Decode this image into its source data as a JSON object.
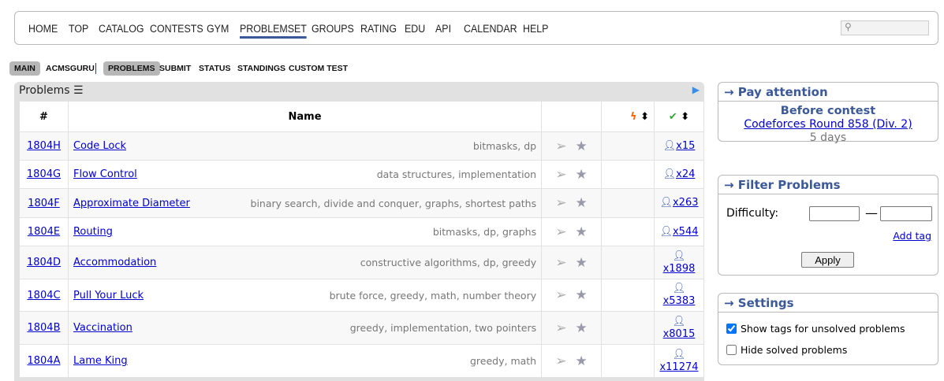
{
  "nav": {
    "items": [
      "HOME",
      "TOP",
      "CATALOG",
      "CONTESTS",
      "GYM",
      "PROBLEMSET",
      "GROUPS",
      "RATING",
      "EDU",
      "API",
      "CALENDAR",
      "HELP"
    ],
    "active": "PROBLEMSET"
  },
  "subnav": {
    "items": [
      "MAIN",
      "ACMSGURU",
      "PROBLEMS",
      "SUBMIT",
      "STATUS",
      "STANDINGS",
      "CUSTOM TEST"
    ]
  },
  "problems": {
    "title": "Problems",
    "headers": {
      "num": "#",
      "name": "Name"
    },
    "rows": [
      {
        "id": "1804H",
        "name": "Code Lock",
        "tags": "bitmasks, dp",
        "solved": "x15"
      },
      {
        "id": "1804G",
        "name": "Flow Control",
        "tags": "data structures, implementation",
        "solved": "x24"
      },
      {
        "id": "1804F",
        "name": "Approximate Diameter",
        "tags": "binary search, divide and conquer, graphs, shortest paths",
        "solved": "x263"
      },
      {
        "id": "1804E",
        "name": "Routing",
        "tags": "bitmasks, dp, graphs",
        "solved": "x544"
      },
      {
        "id": "1804D",
        "name": "Accommodation",
        "tags": "constructive algorithms, dp, greedy",
        "solved": "x1898"
      },
      {
        "id": "1804C",
        "name": "Pull Your Luck",
        "tags": "brute force, greedy, math, number theory",
        "solved": "x5383"
      },
      {
        "id": "1804B",
        "name": "Vaccination",
        "tags": "greedy, implementation, two pointers",
        "solved": "x8015"
      },
      {
        "id": "1804A",
        "name": "Lame King",
        "tags": "greedy, math",
        "solved": "x11274"
      }
    ]
  },
  "pay": {
    "title": "→ Pay attention",
    "heading": "Before contest",
    "contest": "Codeforces Round 858 (Div. 2)",
    "time": "5 days"
  },
  "filter": {
    "title": "→ Filter Problems",
    "difficulty": "Difficulty:",
    "dash": "—",
    "add_tag": "Add tag",
    "apply": "Apply"
  },
  "settings": {
    "title": "→ Settings",
    "show_tags": "Show tags for unsolved problems",
    "show_tags_checked": true,
    "hide_solved": "Hide solved problems",
    "hide_solved_checked": false
  }
}
